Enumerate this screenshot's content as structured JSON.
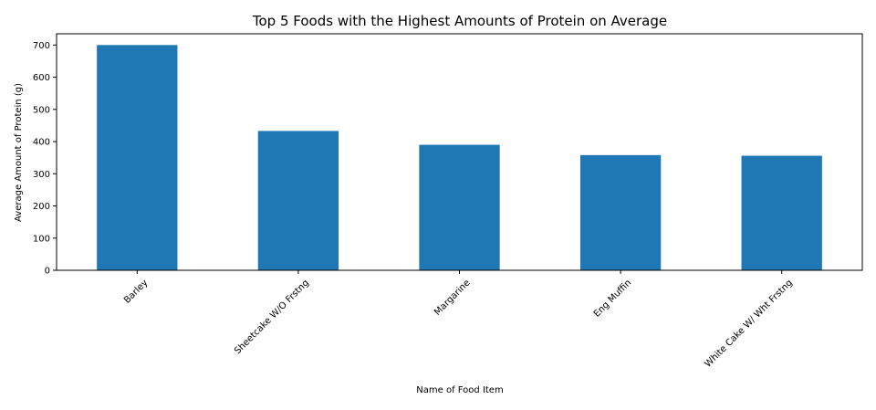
{
  "chart_data": {
    "type": "bar",
    "title": "Top 5 Foods with the Highest Amounts of Protein on Average",
    "xlabel": "Name of Food Item",
    "ylabel": "Average Amount of Protein (g)",
    "categories": [
      "Barley",
      "Sheetcake W/O Frstng",
      "Margarine",
      "Eng Muffin",
      "White Cake W/ Wht Frstng"
    ],
    "values": [
      700,
      433,
      390,
      358,
      356
    ],
    "ylim": [
      0,
      735
    ],
    "yticks": [
      0,
      100,
      200,
      300,
      400,
      500,
      600,
      700
    ],
    "bar_color": "#1f77b4",
    "grid": false,
    "legend": "none"
  }
}
